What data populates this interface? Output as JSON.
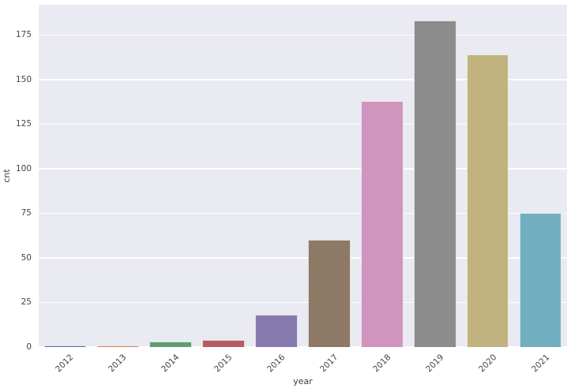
{
  "chart_data": {
    "type": "bar",
    "title": "",
    "xlabel": "year",
    "ylabel": "cnt",
    "categories": [
      "2012",
      "2013",
      "2014",
      "2015",
      "2016",
      "2017",
      "2018",
      "2019",
      "2020",
      "2021"
    ],
    "values": [
      1,
      1,
      3,
      4,
      18,
      60,
      138,
      183,
      164,
      75
    ],
    "bar_colors": [
      "#5875a3",
      "#cc8963",
      "#5f9e6e",
      "#b55d60",
      "#8579ad",
      "#8d7966",
      "#d095bf",
      "#8c8c8c",
      "#c1b37f",
      "#71aec0"
    ],
    "y_ticks": [
      0,
      25,
      50,
      75,
      100,
      125,
      150,
      175
    ],
    "ylim": [
      0,
      192
    ],
    "grid": true,
    "legend": "none",
    "plot_background": "#eaeaf2",
    "gridline_color": "#ffffff"
  }
}
